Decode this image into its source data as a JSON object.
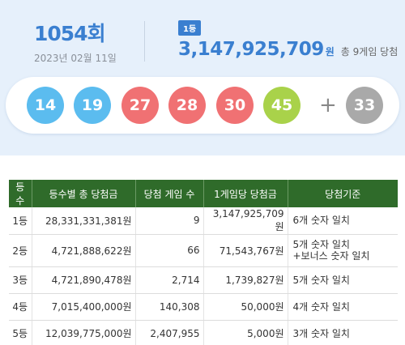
{
  "draw": {
    "round": "1054회",
    "date": "2023년 02월 11일",
    "rank_badge": "1등",
    "prize_amount": "3,147,925,709",
    "prize_unit": "원",
    "winners_text": "총 9게임 당첨"
  },
  "balls": [
    {
      "number": "14",
      "color": "#5bbcef"
    },
    {
      "number": "19",
      "color": "#5bbcef"
    },
    {
      "number": "27",
      "color": "#f07173"
    },
    {
      "number": "28",
      "color": "#f07173"
    },
    {
      "number": "30",
      "color": "#f07173"
    },
    {
      "number": "45",
      "color": "#a9d24a"
    }
  ],
  "plus_sign": "+",
  "bonus_ball": {
    "number": "33",
    "color": "#a9a9a9"
  },
  "table": {
    "headers": [
      "등수",
      "등수별 총 당첨금",
      "당첨 게임 수",
      "1게임당 당첨금",
      "당첨기준"
    ],
    "rows": [
      {
        "rank": "1등",
        "total": "28,331,331,381원",
        "games": "9",
        "per_game": "3,147,925,709원",
        "criteria": "6개 숫자 일치",
        "criteria2": ""
      },
      {
        "rank": "2등",
        "total": "4,721,888,622원",
        "games": "66",
        "per_game": "71,543,767원",
        "criteria": "5개 숫자 일치",
        "criteria2": "+보너스 숫자 일치"
      },
      {
        "rank": "3등",
        "total": "4,721,890,478원",
        "games": "2,714",
        "per_game": "1,739,827원",
        "criteria": "5개 숫자 일치",
        "criteria2": ""
      },
      {
        "rank": "4등",
        "total": "7,015,400,000원",
        "games": "140,308",
        "per_game": "50,000원",
        "criteria": "4개 숫자 일치",
        "criteria2": ""
      },
      {
        "rank": "5등",
        "total": "12,039,775,000원",
        "games": "2,407,955",
        "per_game": "5,000원",
        "criteria": "3개 숫자 일치",
        "criteria2": ""
      }
    ]
  }
}
